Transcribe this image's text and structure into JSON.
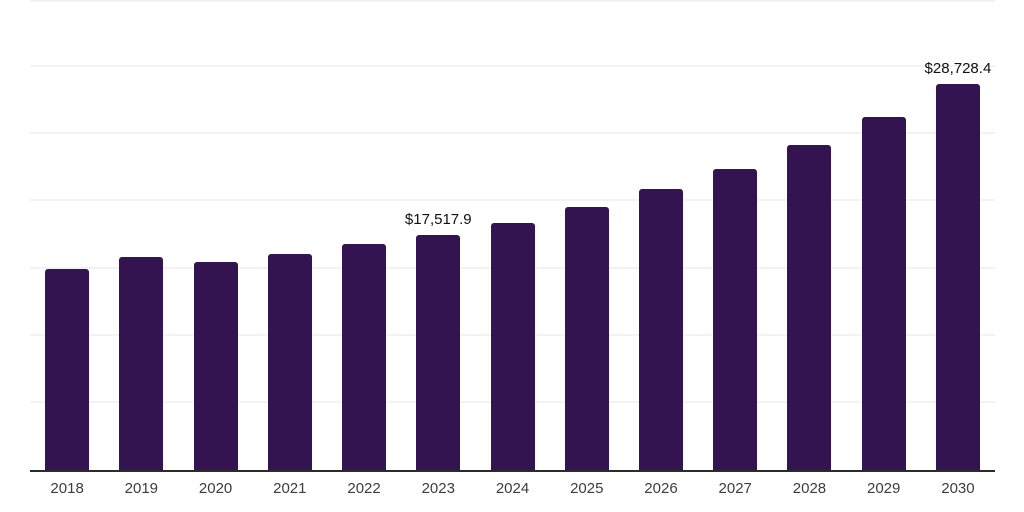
{
  "style": {
    "background_color": "#ffffff",
    "bar_color": "#331450",
    "gridline_color": "#f3f3f3",
    "axis_line_color": "#2b2b2b",
    "tick_label_color": "#3d3d3d",
    "data_label_color": "#111111"
  },
  "chart_data": {
    "type": "bar",
    "title": "",
    "xlabel": "",
    "ylabel": "",
    "categories": [
      "2018",
      "2019",
      "2020",
      "2021",
      "2022",
      "2023",
      "2024",
      "2025",
      "2026",
      "2027",
      "2028",
      "2029",
      "2030"
    ],
    "values": [
      15000,
      15900,
      15500,
      16100,
      16800,
      17517.9,
      18400,
      19600,
      20900,
      22400,
      24200,
      26300,
      28728.4
    ],
    "point_labels": [
      "",
      "",
      "",
      "",
      "",
      "$17,517.9",
      "",
      "",
      "",
      "",
      "",
      "",
      "$28,728.4"
    ],
    "ylim": [
      0,
      35000
    ],
    "grid_interval": 5000,
    "grid": "horizontal",
    "y_axis_tick_labels": "hidden",
    "legend_position": "none"
  }
}
